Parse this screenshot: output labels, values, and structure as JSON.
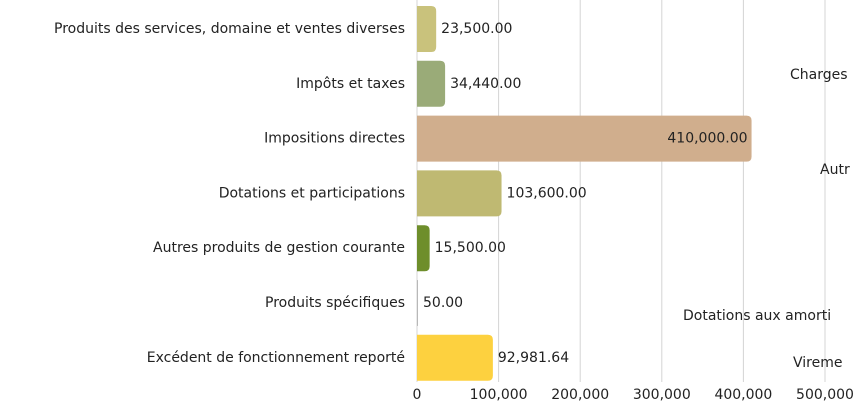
{
  "chart_data": {
    "type": "bar",
    "orientation": "horizontal",
    "categories": [
      "Produits des services, domaine et ventes diverses",
      "Impôts et taxes",
      "Impositions directes",
      "Dotations et participations",
      "Autres produits de gestion courante",
      "Produits spécifiques",
      "Excédent de fonctionnement reporté"
    ],
    "values": [
      23500,
      34440,
      410000,
      103600,
      15500,
      50,
      92981.64
    ],
    "value_labels": [
      "23,500.00",
      "34,440.00",
      "410,000.00",
      "103,600.00",
      "15,500.00",
      "50.00",
      "92,981.64"
    ],
    "colors": [
      "#c9c27c",
      "#9aab78",
      "#d0ae8d",
      "#bfb972",
      "#6e8e2b",
      "#b8b8b8",
      "#fdd13f"
    ],
    "xlim": [
      0,
      500000
    ],
    "xticks": [
      0,
      {
        "value": 100000,
        "label": "100,000"
      },
      {
        "value": 200000,
        "label": "200,000"
      },
      {
        "value": 300000,
        "label": "300,000"
      },
      {
        "value": 400000,
        "label": "400,000"
      },
      {
        "value": 500000,
        "label": "500,000"
      }
    ],
    "grid": true,
    "annotations": [
      "Charges",
      "Autr",
      "Dotations aux amorti",
      "Vireme"
    ]
  }
}
